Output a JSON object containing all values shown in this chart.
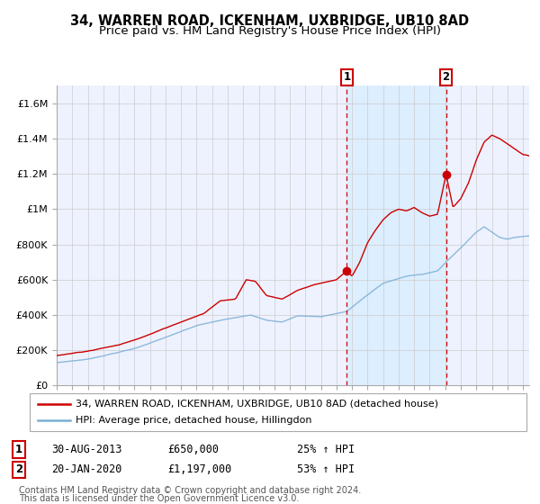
{
  "title": "34, WARREN ROAD, ICKENHAM, UXBRIDGE, UB10 8AD",
  "subtitle": "Price paid vs. HM Land Registry's House Price Index (HPI)",
  "x_start_year": 1995,
  "x_end_year": 2025,
  "y_min": 0,
  "y_max": 1700000,
  "y_ticks": [
    0,
    200000,
    400000,
    600000,
    800000,
    1000000,
    1200000,
    1400000,
    1600000
  ],
  "y_tick_labels": [
    "£0",
    "£200K",
    "£400K",
    "£600K",
    "£800K",
    "£1M",
    "£1.2M",
    "£1.4M",
    "£1.6M"
  ],
  "sale1_year": 2013.66,
  "sale1_price": 650000,
  "sale1_label": "1",
  "sale1_date": "30-AUG-2013",
  "sale1_amount": "£650,000",
  "sale1_hpi_change": "25% ↑ HPI",
  "sale2_year": 2020.05,
  "sale2_price": 1197000,
  "sale2_label": "2",
  "sale2_date": "20-JAN-2020",
  "sale2_amount": "£1,197,000",
  "sale2_hpi_change": "53% ↑ HPI",
  "red_line_color": "#cc0000",
  "blue_line_color": "#7bafd4",
  "shade_color": "#ddeeff",
  "vline_color": "#cc0000",
  "grid_color": "#cccccc",
  "bg_color": "#ffffff",
  "plot_bg_color": "#eef2ff",
  "legend_line1": "34, WARREN ROAD, ICKENHAM, UXBRIDGE, UB10 8AD (detached house)",
  "legend_line2": "HPI: Average price, detached house, Hillingdon",
  "footnote1": "Contains HM Land Registry data © Crown copyright and database right 2024.",
  "footnote2": "This data is licensed under the Open Government Licence v3.0.",
  "title_fontsize": 10.5,
  "subtitle_fontsize": 9.5,
  "tick_fontsize": 8,
  "legend_fontsize": 8,
  "table_fontsize": 8.5
}
